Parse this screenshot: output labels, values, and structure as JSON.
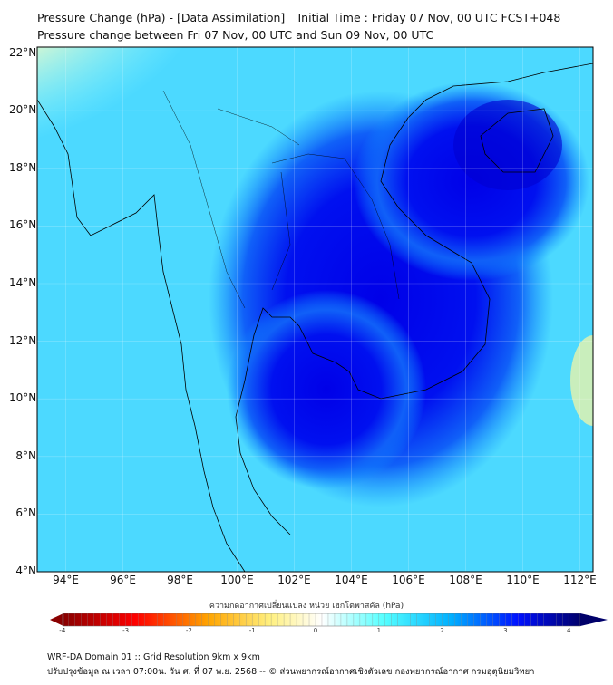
{
  "title": {
    "line1": "Pressure Change (hPa) - [Data Assimilation] _ Initial Time : Friday 07 Nov, 00 UTC FCST+048",
    "line2": "Pressure change between Fri 07 Nov, 00 UTC and Sun 09 Nov, 00 UTC"
  },
  "map": {
    "lat_labels": [
      "22°N",
      "20°N",
      "18°N",
      "16°N",
      "14°N",
      "12°N",
      "10°N",
      "8°N",
      "6°N",
      "4°N"
    ],
    "lat_values": [
      22,
      20,
      18,
      16,
      14,
      12,
      10,
      8,
      6,
      4
    ],
    "lon_labels": [
      "94°E",
      "96°E",
      "98°E",
      "100°E",
      "102°E",
      "104°E",
      "106°E",
      "108°E",
      "110°E",
      "112°E"
    ],
    "lon_values": [
      94,
      96,
      98,
      100,
      102,
      104,
      106,
      108,
      110,
      112
    ],
    "extent": {
      "lon": [
        93.0,
        112.45
      ],
      "lat": [
        4.0,
        22.2
      ]
    }
  },
  "colorbar": {
    "label": "ความกดอากาศเปลี่ยนแปลง หน่วย เฮกโตพาสคัล (hPa)",
    "ticks": [
      "-4",
      "-3",
      "-2",
      "-1",
      "0",
      "1",
      "2",
      "3",
      "4"
    ],
    "tick_values": [
      -4,
      -3,
      -2,
      -1,
      0,
      1,
      2,
      3,
      4
    ],
    "colors": [
      "#7a0000",
      "#ff0000",
      "#ffa500",
      "#ffee55",
      "#ffffff",
      "#55ffff",
      "#00b0ff",
      "#0000ff",
      "#00005a"
    ]
  },
  "footer": {
    "line1": "WRF-DA Domain 01 :: Grid Resolution 9km x 9km",
    "line2": "ปรับปรุงข้อมูล ณ เวลา 07:00น. วัน ศ. ที่ 07 พ.ย. 2568 -- © ส่วนพยากรณ์อากาศเชิงตัวเลข กองพยากรณ์อากาศ กรมอุตุนิยมวิทยา"
  }
}
